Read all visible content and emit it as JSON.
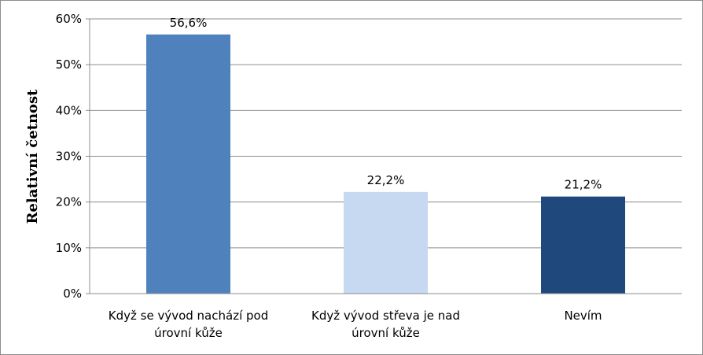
{
  "chart_data": {
    "type": "bar",
    "ylabel": "Relativní četnost",
    "xlabel": "",
    "categories": [
      [
        "Když se vývod nachází pod",
        "úrovní kůže"
      ],
      [
        "Když vývod střeva je nad",
        "úrovní kůže"
      ],
      [
        "Nevím"
      ]
    ],
    "values": [
      56.6,
      22.2,
      21.2
    ],
    "data_labels": [
      "56,6%",
      "22,2%",
      "21,2%"
    ],
    "bar_colors": [
      "#4f81bd",
      "#c6d9f1",
      "#1f497d"
    ],
    "ylim": [
      0,
      60
    ],
    "yticks": [
      {
        "value": 0,
        "label": "0%"
      },
      {
        "value": 10,
        "label": "10%"
      },
      {
        "value": 20,
        "label": "20%"
      },
      {
        "value": 30,
        "label": "30%"
      },
      {
        "value": 40,
        "label": "40%"
      },
      {
        "value": 50,
        "label": "50%"
      },
      {
        "value": 60,
        "label": "60%"
      }
    ],
    "grid": true,
    "legend": "none"
  }
}
